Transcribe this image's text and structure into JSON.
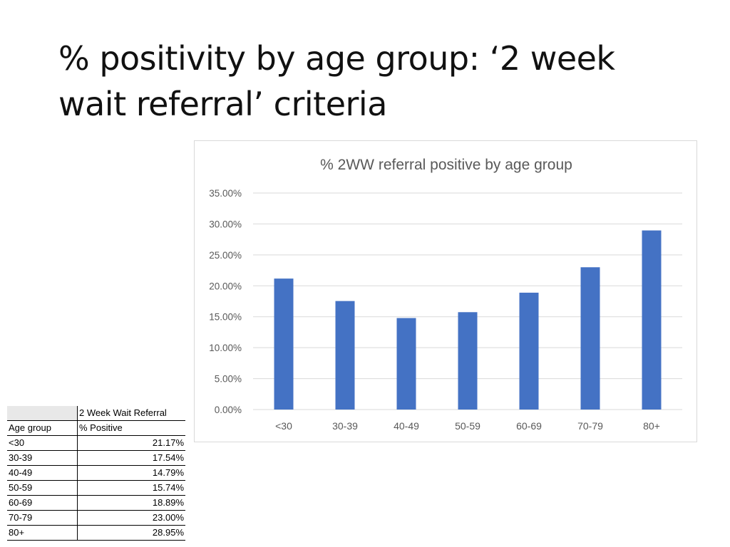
{
  "slide": {
    "title_line1": "% positivity by age group: ‘2 week",
    "title_line2": "wait referral’ criteria"
  },
  "table": {
    "header_col1_top": "",
    "header_col2_top": "2 Week Wait Referral",
    "header_col1": "Age group",
    "header_col2": "% Positive",
    "rows": [
      {
        "group": "<30",
        "value": "21.17%"
      },
      {
        "group": "30-39",
        "value": "17.54%"
      },
      {
        "group": "40-49",
        "value": "14.79%"
      },
      {
        "group": "50-59",
        "value": "15.74%"
      },
      {
        "group": "60-69",
        "value": "18.89%"
      },
      {
        "group": "70-79",
        "value": "23.00%"
      },
      {
        "group": "80+",
        "value": "28.95%"
      }
    ]
  },
  "chart_data": {
    "type": "bar",
    "title": "% 2WW referral positive by age group",
    "xlabel": "",
    "ylabel": "",
    "categories": [
      "<30",
      "30-39",
      "40-49",
      "50-59",
      "60-69",
      "70-79",
      "80+"
    ],
    "values": [
      21.17,
      17.54,
      14.79,
      15.74,
      18.89,
      23.0,
      28.95
    ],
    "ylim": [
      0,
      35
    ],
    "yticks": [
      0,
      5,
      10,
      15,
      20,
      25,
      30,
      35
    ],
    "ytick_labels": [
      "0.00%",
      "5.00%",
      "10.00%",
      "15.00%",
      "20.00%",
      "25.00%",
      "30.00%",
      "35.00%"
    ],
    "grid": true,
    "legend": "none",
    "colors": {
      "bar": "#4472c4",
      "grid": "#d9d9d9",
      "title": "#595959",
      "tick_text": "#595959"
    }
  }
}
